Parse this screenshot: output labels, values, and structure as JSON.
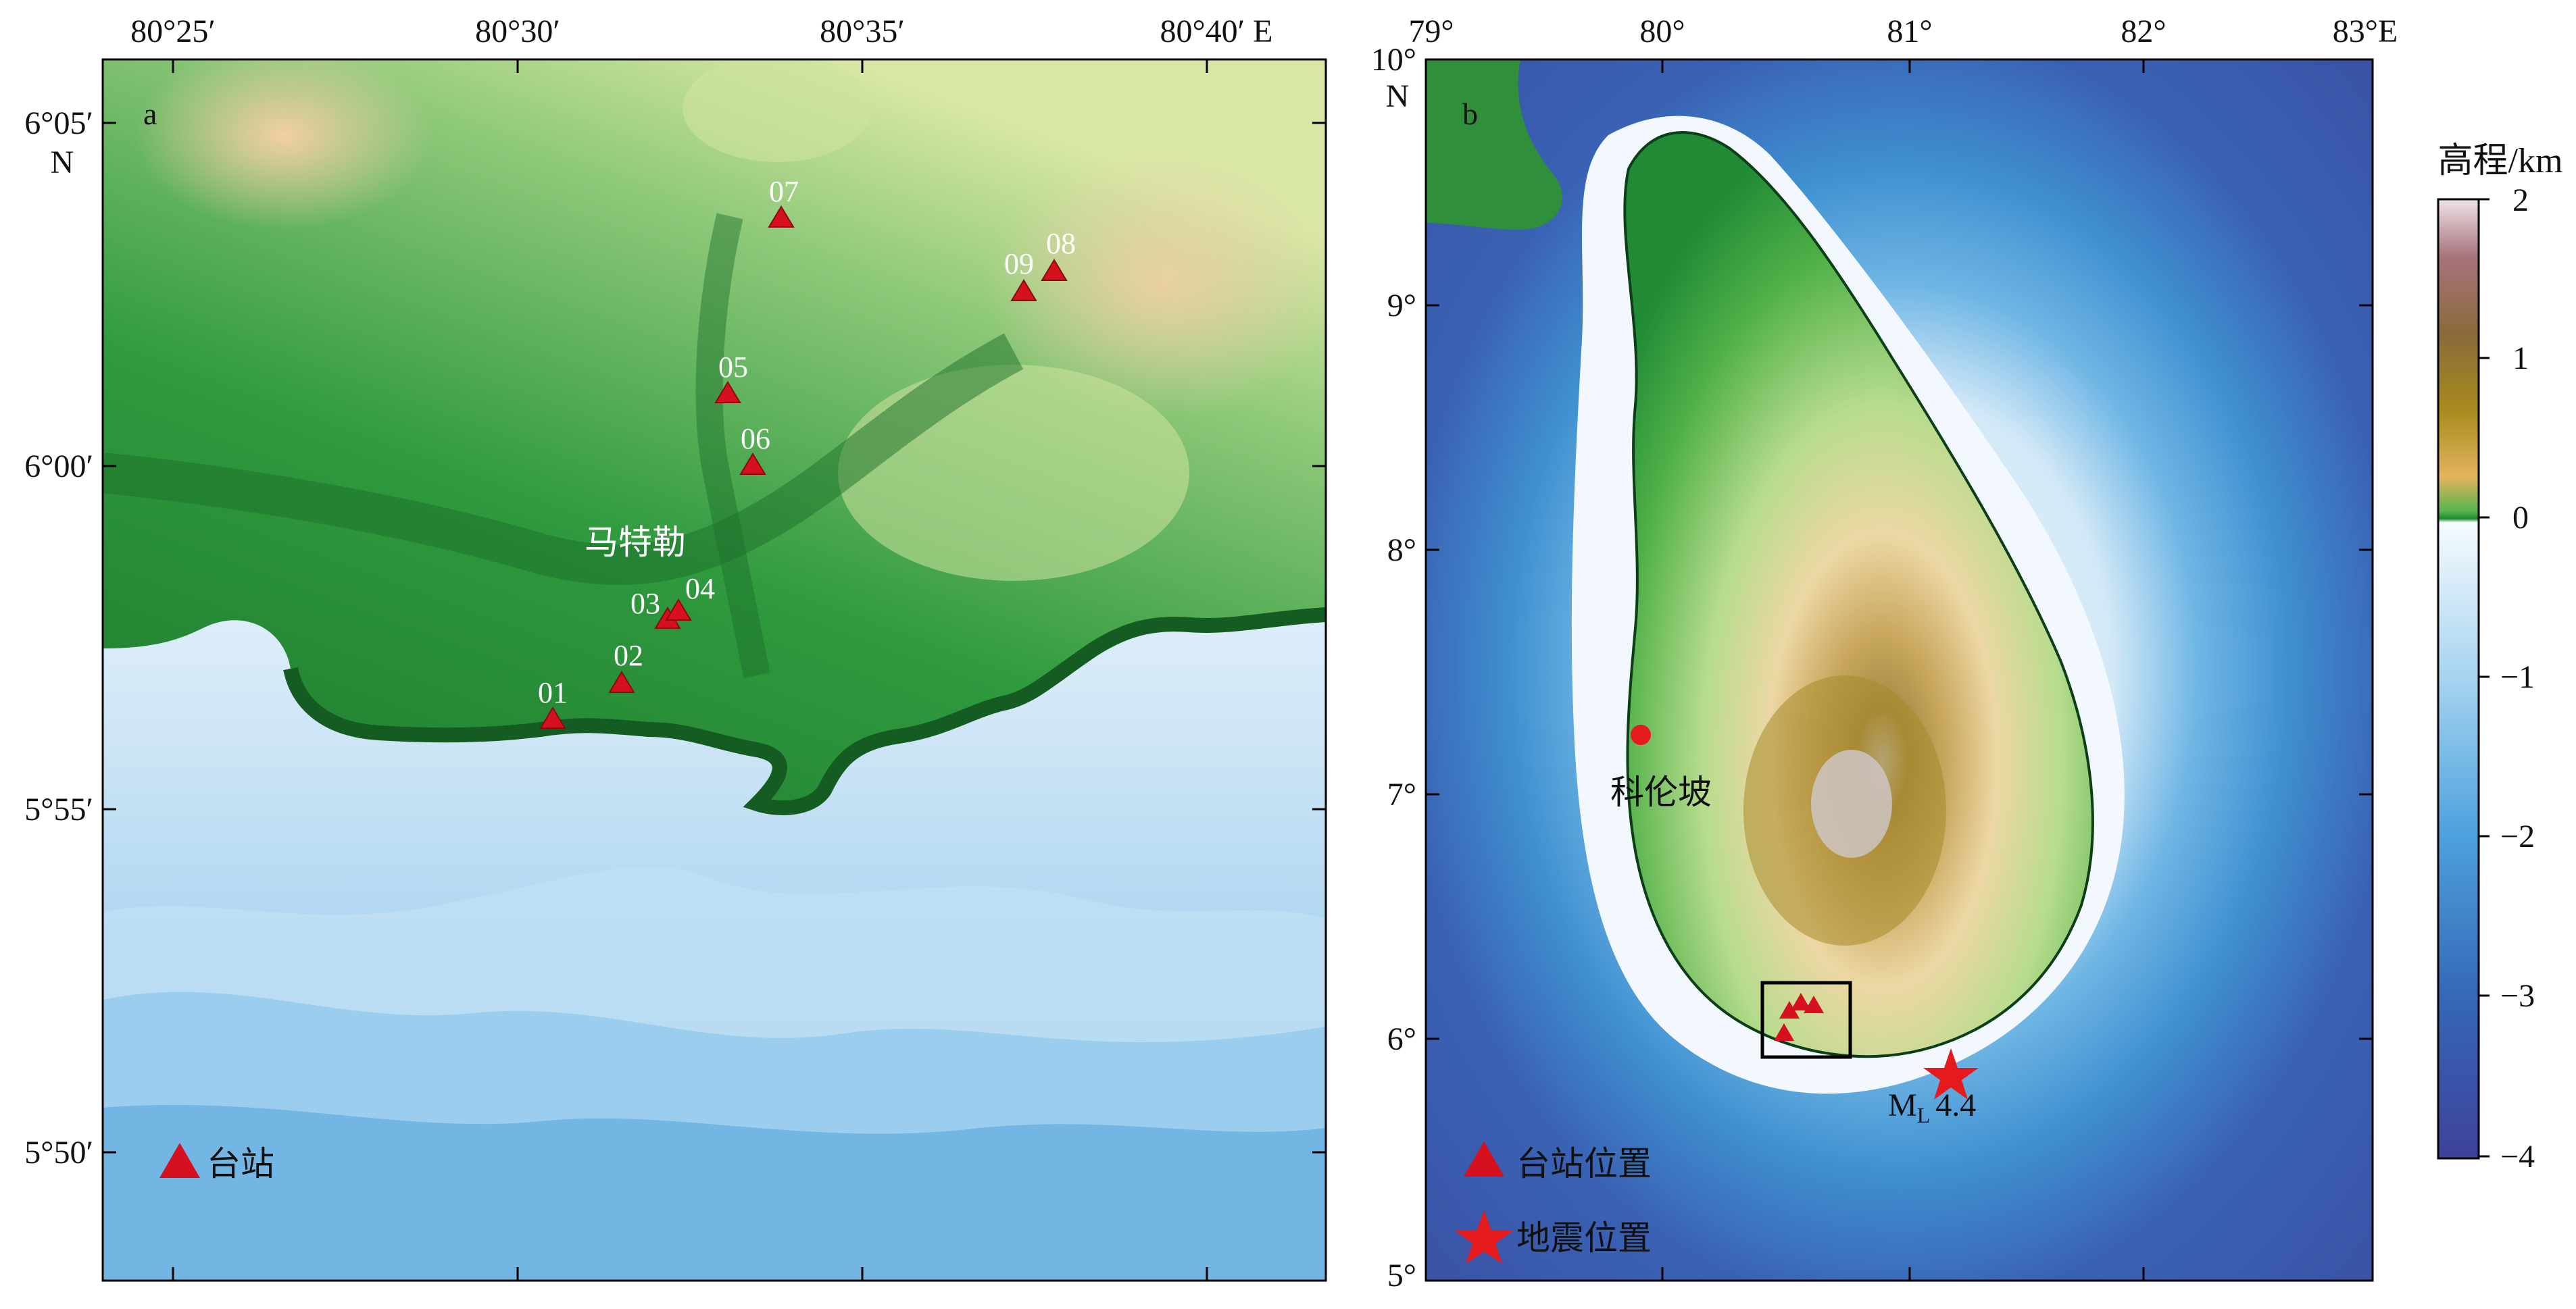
{
  "panel_a": {
    "tag": "a",
    "x_ticks": [
      "80°25′",
      "80°30′",
      "80°35′",
      "80°40′ E"
    ],
    "y_ticks": [
      "6°05′",
      "6°00′",
      "5°55′",
      "5°50′"
    ],
    "y_hemisphere": "N",
    "town_label": "马特勒",
    "stations": [
      "01",
      "02",
      "03",
      "04",
      "05",
      "06",
      "07",
      "08",
      "09"
    ],
    "legend_station": "台站"
  },
  "panel_b": {
    "tag": "b",
    "x_ticks": [
      "79°",
      "80°",
      "81°",
      "82°",
      "83°E"
    ],
    "y_ticks": [
      "10°",
      "9°",
      "8°",
      "7°",
      "6°",
      "5°"
    ],
    "y_hemisphere": "N",
    "city_label": "科伦坡",
    "quake_label_main": "M",
    "quake_label_sub": "L",
    "quake_label_val": "4.4",
    "legend_station": "台站位置",
    "legend_quake": "地震位置"
  },
  "colorbar": {
    "title": "高程/km",
    "ticks": [
      "2",
      "1",
      "0",
      "−1",
      "−2",
      "−3",
      "−4"
    ]
  },
  "colors": {
    "station_marker": "#d7101f",
    "quake_marker": "#e41a1c",
    "deep_sea": "#3a55a8",
    "lowland": "#2f8f3a",
    "highland": "#b88a3a"
  }
}
